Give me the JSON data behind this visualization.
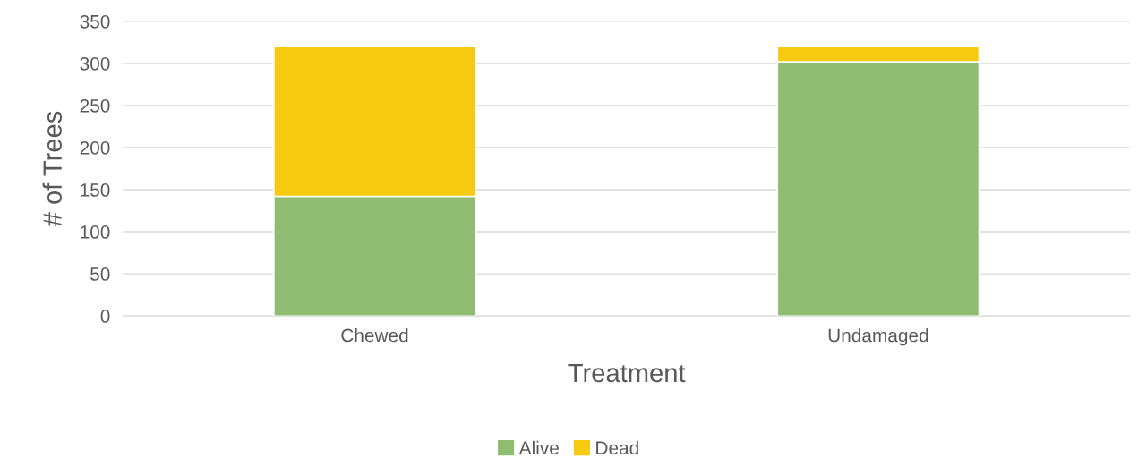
{
  "chart_data": {
    "type": "bar",
    "stacked": true,
    "xlabel": "Treatment",
    "ylabel": "# of Trees",
    "categories": [
      "Chewed",
      "Undamaged"
    ],
    "series": [
      {
        "name": "Alive",
        "color": "#8fbc71",
        "values": [
          142,
          302
        ]
      },
      {
        "name": "Dead",
        "color": "#f6ca0f",
        "values": [
          178,
          18
        ]
      }
    ],
    "ylim": [
      0,
      350
    ],
    "yticks": [
      0,
      50,
      100,
      150,
      200,
      250,
      300,
      350
    ],
    "grid": "y",
    "legend": "bottom"
  }
}
